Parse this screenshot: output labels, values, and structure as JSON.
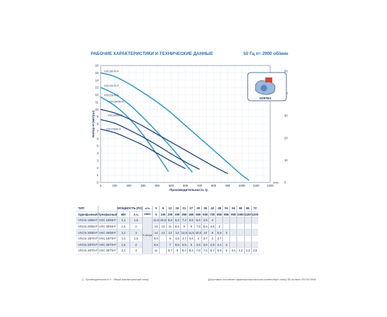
{
  "header": {
    "title": "РАБОЧИЕ ХАРАКТЕРИСТИКИ И ТЕХНИЧЕСКИЕ ДАННЫЕ",
    "right": "50 Гц   n= 2900 об/мин"
  },
  "colors": {
    "title": "#2a6fb4",
    "grid": "#c9d3df",
    "curve_light": "#3a9ec8",
    "curve_dark": "#1e3f78",
    "table_stripe": "#e6ebf2"
  },
  "chart_data": {
    "type": "line",
    "ylabel": "Напор H (метры)",
    "xlabel": "Производительность Q",
    "x_unit": "l/min",
    "x_ticks": [
      "0",
      "50",
      "100",
      "150",
      "200",
      "250",
      "300",
      "350",
      "400",
      "450",
      "500",
      "550",
      "600",
      "650",
      "700",
      "750",
      "800",
      "850",
      "900",
      "950",
      "1000",
      "1050",
      "1100",
      "1150",
      "1200"
    ],
    "x_tick_labels": [
      "0",
      "100",
      "200",
      "300",
      "400",
      "500",
      "600",
      "700",
      "800",
      "900",
      "1000",
      "1100",
      "1200"
    ],
    "y_ticks": [
      "0",
      "1",
      "2",
      "3",
      "4",
      "5",
      "6",
      "7",
      "8",
      "9",
      "10",
      "11",
      "12",
      "13",
      "14",
      "15",
      "16"
    ],
    "y2_ticks": [
      "0",
      "10",
      "20",
      "30",
      "40",
      "50"
    ],
    "xlim": [
      0,
      1200
    ],
    "ylim": [
      0,
      16
    ],
    "grid": true,
    "inset_label": "VORTEX",
    "series": [
      {
        "name": "VXC30/70-F",
        "style": "light",
        "x": [
          0,
          100,
          200,
          300,
          400,
          500,
          600,
          700,
          800,
          900,
          1000,
          1050
        ],
        "y": [
          15,
          14.5,
          13.5,
          12.3,
          11,
          9.5,
          7.8,
          6.1,
          4.4,
          2.7,
          1.0,
          0.3
        ]
      },
      {
        "name": "VXC20/70-F",
        "style": "light",
        "x": [
          0,
          100,
          200,
          300,
          400,
          500,
          600,
          650
        ],
        "y": [
          13,
          12.1,
          10.7,
          8.9,
          6.9,
          4.8,
          2.5,
          1.4
        ]
      },
      {
        "name": "VXC15/70-F",
        "style": "light",
        "x": [
          0,
          100,
          200,
          300,
          400,
          480
        ],
        "y": [
          11.7,
          10.5,
          8.8,
          6.5,
          3.8,
          1.5
        ]
      },
      {
        "name": "VXC30/50-F",
        "style": "dark",
        "x": [
          0,
          100,
          200,
          300,
          400,
          500,
          600,
          700,
          800,
          900
        ],
        "y": [
          10,
          9.5,
          8.7,
          7.7,
          6.6,
          5.5,
          4.4,
          3.3,
          2.2,
          1.2
        ]
      },
      {
        "name": "VXC20/50-F",
        "style": "dark",
        "x": [
          0,
          100,
          200,
          300,
          400,
          500,
          600,
          700
        ],
        "y": [
          8.6,
          8.1,
          7.2,
          6.2,
          5.1,
          3.9,
          2.8,
          1.8
        ]
      },
      {
        "name": "VXC15/50-F",
        "style": "dark",
        "x": [
          0,
          100,
          200,
          300,
          400,
          500,
          600
        ],
        "y": [
          7.3,
          6.8,
          6.0,
          5.1,
          4.0,
          2.9,
          1.9
        ]
      }
    ]
  },
  "table": {
    "head": {
      "type": "ТИП",
      "single_phase": "Однофазный",
      "three_phase": "Трехфазный",
      "power": "МОЩНОСТЬ (P2)",
      "kw": "кВт",
      "hp": "л.с.",
      "unit_m3h": "м³/ч",
      "unit_lmin": "л/мин",
      "head_unit": "Н метры"
    },
    "flow_m3h": [
      "0",
      "6",
      "12",
      "18",
      "21",
      "27",
      "30",
      "36",
      "42",
      "48",
      "51",
      "54",
      "60",
      "66",
      "72"
    ],
    "flow_lmin": [
      "0",
      "100",
      "200",
      "300",
      "350",
      "450",
      "500",
      "600",
      "700",
      "800",
      "850",
      "900",
      "1000",
      "1100",
      "1200"
    ],
    "rows": [
      {
        "single": "VXCm 15/50-F",
        "three": "VXC 15/50-F",
        "kw": "1,1",
        "hp": "1,5",
        "vals": [
          "11,5",
          "10,5",
          "9,5",
          "8,2",
          "7,2",
          "6,5",
          "5,6",
          "4,5",
          "4",
          "",
          "",
          "",
          "",
          "",
          ""
        ]
      },
      {
        "single": "VXCm 20/50-F",
        "three": "VXC 20/50-F",
        "kw": "1,5",
        "hp": "2",
        "vals": [
          "13",
          "12",
          "11",
          "9,5",
          "9",
          "8",
          "7,8",
          "6,5",
          "4,5",
          "2",
          "",
          "",
          "",
          "",
          ""
        ]
      },
      {
        "single": "VXCm 30/50-F",
        "three": "VXC 30/50-F",
        "kw": "2,2",
        "hp": "3",
        "vals": [
          "14",
          "13",
          "13",
          "13",
          "12,5",
          "11,5",
          "10,8",
          "10",
          "8",
          "5,5",
          "3",
          "",
          "",
          "",
          ""
        ]
      },
      {
        "single": "VXCm 15/70-F",
        "three": "VXC 15/70-F",
        "kw": "1,1",
        "hp": "1,5",
        "vals": [
          "6,5",
          "",
          "5",
          "4,5",
          "4,7",
          "4,6",
          "4",
          "3,7",
          "3",
          "2,7",
          "",
          "",
          "",
          "",
          ""
        ]
      },
      {
        "single": "VXCm 20/70-F",
        "three": "VXC 20/70-F",
        "kw": "1,5",
        "hp": "2",
        "vals": [
          "8,5",
          "",
          "7",
          "6,5",
          "5,5",
          "5",
          "4,5",
          "3,5",
          "2,8",
          "2,4",
          "2",
          "",
          "",
          "",
          ""
        ]
      },
      {
        "single": "VXCm 30/70-F",
        "three": "VXC 30/70-F",
        "kw": "2,2",
        "hp": "3",
        "vals": [
          "11",
          "",
          "9,7",
          "9",
          "8,4",
          "8,2",
          "7,8",
          "7,5",
          "6,7",
          "5,8",
          "5",
          "4,6",
          "4,2",
          "3,3",
          "2,5"
        ]
      }
    ],
    "extra_cells": [
      "1,5"
    ]
  },
  "footnotes": {
    "left": "Q - Производительность   Н - Общий манометрический напор",
    "right": "Допустимое отклонение характеристики насосов соответствует классу 3В согласно EN ISO 9906"
  }
}
